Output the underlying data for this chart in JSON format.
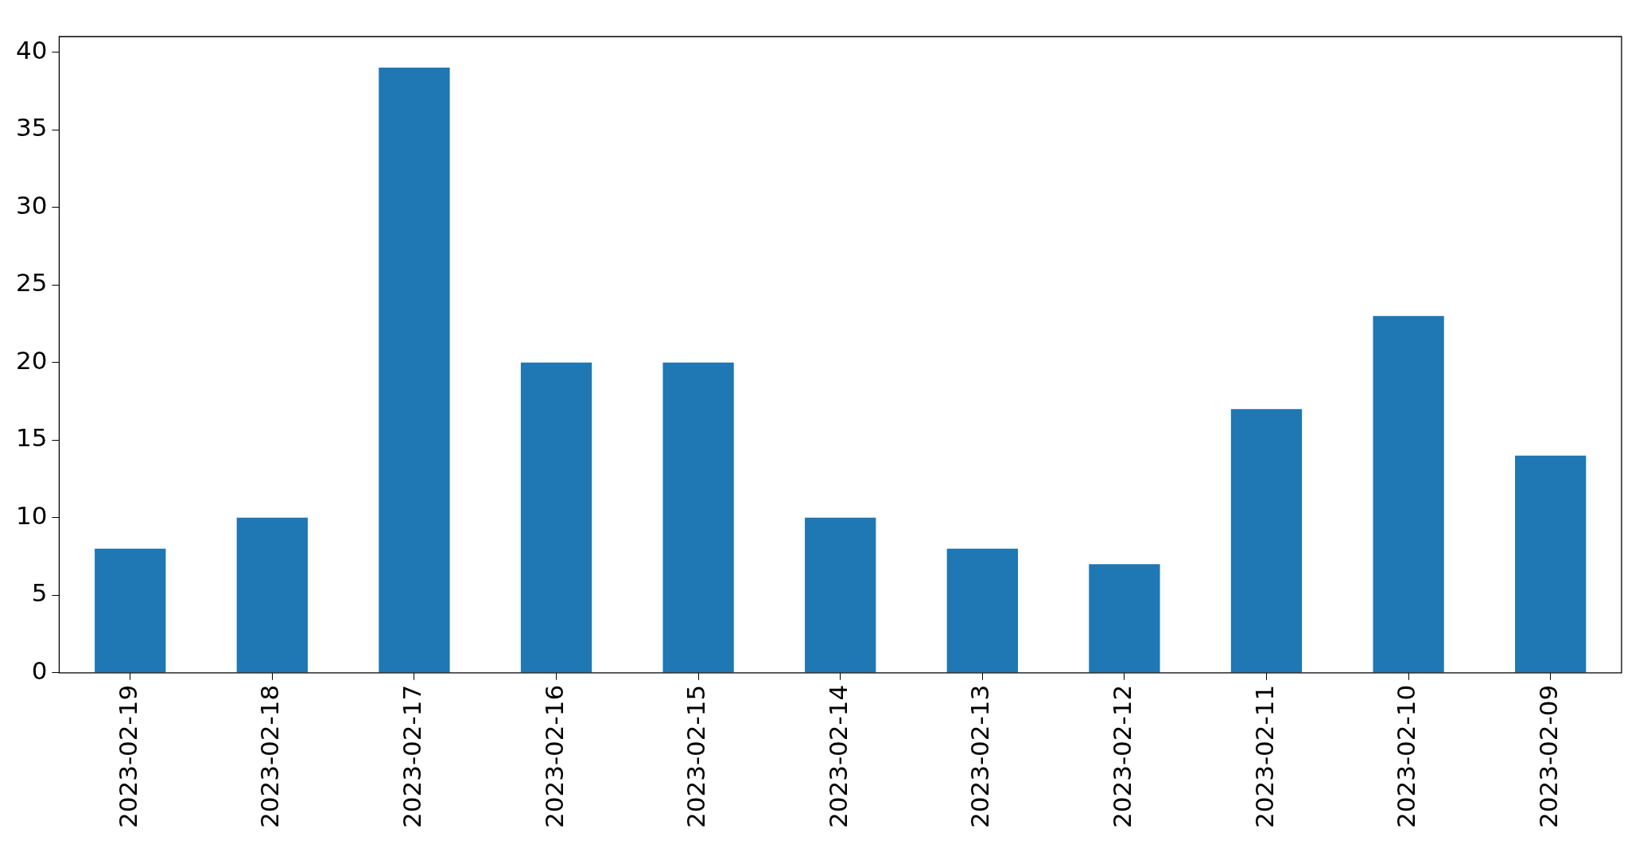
{
  "chart_data": {
    "type": "bar",
    "categories": [
      "2023-02-19",
      "2023-02-18",
      "2023-02-17",
      "2023-02-16",
      "2023-02-15",
      "2023-02-14",
      "2023-02-13",
      "2023-02-12",
      "2023-02-11",
      "2023-02-10",
      "2023-02-09"
    ],
    "values": [
      8,
      10,
      39,
      20,
      20,
      10,
      8,
      7,
      17,
      23,
      14
    ],
    "color": "#1f77b4",
    "ylim": [
      0,
      41
    ],
    "yticks": [
      0,
      5,
      10,
      15,
      20,
      25,
      30,
      35,
      40
    ],
    "grid": false,
    "legend": false
  }
}
